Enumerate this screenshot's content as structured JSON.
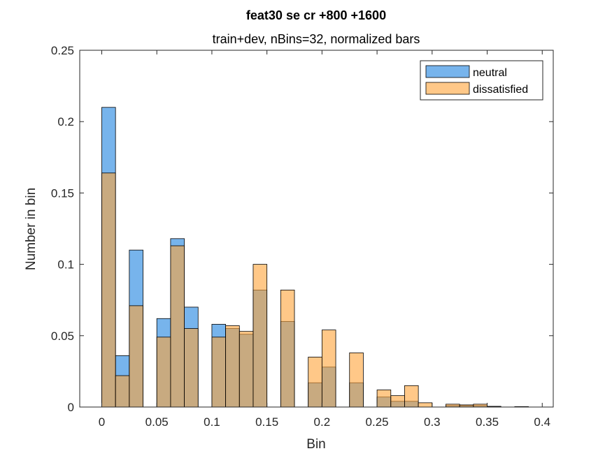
{
  "chart_data": {
    "type": "bar",
    "title": "feat30 se cr  +800  +1600",
    "subtitle": "train+dev, nBins=32, normalized bars",
    "xlabel": "Bin",
    "ylabel": "Number in bin",
    "xlim": [
      -0.02,
      0.41
    ],
    "ylim": [
      0,
      0.25
    ],
    "xticks": [
      0,
      0.05,
      0.1,
      0.15,
      0.2,
      0.25,
      0.3,
      0.35,
      0.4
    ],
    "xtick_labels": [
      "0",
      "0.05",
      "0.1",
      "0.15",
      "0.2",
      "0.25",
      "0.3",
      "0.35",
      "0.4"
    ],
    "yticks": [
      0,
      0.05,
      0.1,
      0.15,
      0.2,
      0.25
    ],
    "ytick_labels": [
      "0",
      "0.05",
      "0.1",
      "0.15",
      "0.2",
      "0.25"
    ],
    "grid": false,
    "legend_position": "top-right",
    "bin_edges": [
      0,
      0.0125,
      0.025,
      0.0375,
      0.05,
      0.0625,
      0.075,
      0.0875,
      0.1,
      0.1125,
      0.125,
      0.1375,
      0.15,
      0.1625,
      0.175,
      0.1875,
      0.2,
      0.2125,
      0.225,
      0.2375,
      0.25,
      0.2625,
      0.275,
      0.2875,
      0.3,
      0.3125,
      0.325,
      0.3375,
      0.35,
      0.3625,
      0.375,
      0.3875,
      0.4
    ],
    "series": [
      {
        "name": "neutral",
        "color": "#4a9be6",
        "values": [
          0.21,
          0.036,
          0.11,
          0,
          0.062,
          0.118,
          0.07,
          0,
          0.058,
          0.055,
          0.051,
          0.082,
          0,
          0.06,
          0,
          0.017,
          0.028,
          0,
          0.017,
          0,
          0.007,
          0.004,
          0.004,
          0,
          0,
          0.001,
          0.001,
          0.001,
          0.0005,
          0,
          0.0003,
          0
        ]
      },
      {
        "name": "dissatisfied",
        "color": "#ffa338",
        "values": [
          0.164,
          0.022,
          0.071,
          0,
          0.049,
          0.113,
          0.055,
          0,
          0.049,
          0.057,
          0.053,
          0.1,
          0,
          0.082,
          0,
          0.035,
          0.054,
          0,
          0.038,
          0,
          0.012,
          0.008,
          0.015,
          0.003,
          0,
          0.002,
          0.0015,
          0.002,
          0.0003,
          0,
          0.0002,
          0
        ]
      }
    ]
  }
}
